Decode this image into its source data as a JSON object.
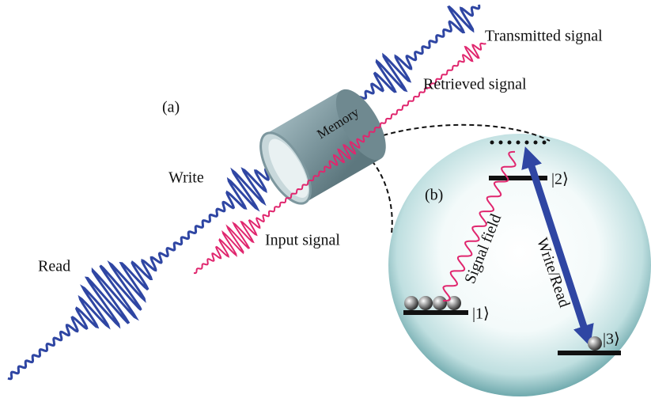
{
  "panel_a": {
    "label": "(a)",
    "memory": "Memory",
    "write": "Write",
    "read": "Read",
    "input_signal": "Input signal",
    "retrieved_signal": "Retrieved signal",
    "transmitted_signal": "Transmitted signal"
  },
  "panel_b": {
    "label": "(b)",
    "signal_field": "Signal field",
    "write_read": "Write/Read",
    "level_1": "|1⟩",
    "level_2": "|2⟩",
    "level_3": "|3⟩"
  }
}
